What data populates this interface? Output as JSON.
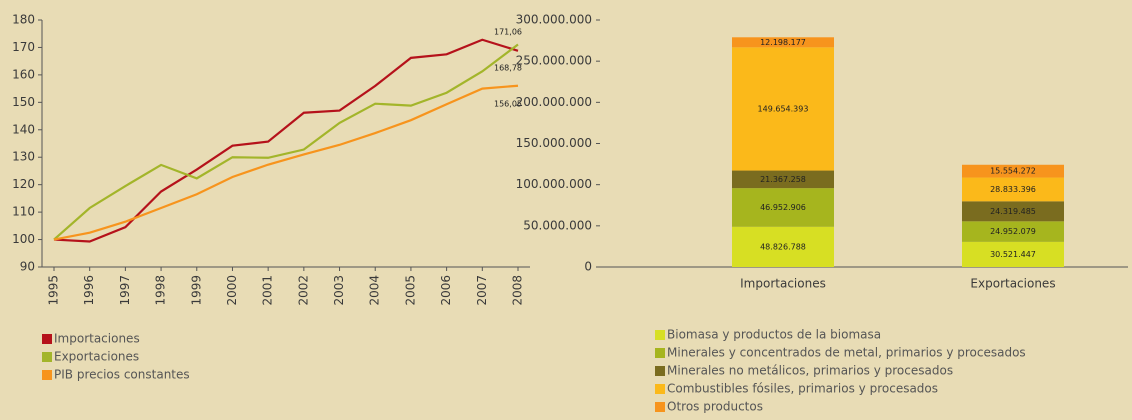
{
  "chart_data": [
    {
      "type": "line",
      "x": [
        1995,
        1996,
        1997,
        1998,
        1999,
        2000,
        2001,
        2002,
        2003,
        2004,
        2005,
        2006,
        2007,
        2008
      ],
      "xticks": [
        1995,
        1996,
        1997,
        1998,
        1999,
        2000,
        2001,
        2002,
        2003,
        2004,
        2005,
        2006,
        2007,
        2008
      ],
      "ylim": [
        90,
        180
      ],
      "yticks": [
        90,
        100,
        110,
        120,
        130,
        140,
        150,
        160,
        170,
        180
      ],
      "series": [
        {
          "name": "Importaciones",
          "color": "#b5121b",
          "values": [
            100,
            99.3,
            104.5,
            117.5,
            125.5,
            134.2,
            135.7,
            146.2,
            147,
            156,
            166.2,
            167.5,
            172.8,
            168.78
          ],
          "value_labels": [
            null,
            null,
            null,
            null,
            null,
            null,
            null,
            null,
            null,
            null,
            null,
            null,
            null,
            "168,78"
          ]
        },
        {
          "name": "Exportaciones",
          "color": "#a3b52a",
          "values": [
            100,
            111.5,
            119.5,
            127.2,
            122.3,
            130,
            129.8,
            132.8,
            142.5,
            149.5,
            148.8,
            153.5,
            161.3,
            171.06
          ],
          "value_labels": [
            null,
            null,
            null,
            null,
            null,
            null,
            null,
            null,
            null,
            null,
            null,
            null,
            null,
            "171,06"
          ]
        },
        {
          "name": "PIB precios constantes",
          "color": "#f7941d",
          "values": [
            100,
            102.5,
            106.5,
            111.5,
            116.5,
            122.8,
            127.3,
            131,
            134.5,
            138.8,
            143.5,
            149.3,
            155,
            156.05
          ],
          "value_labels": [
            null,
            null,
            null,
            null,
            null,
            null,
            null,
            null,
            null,
            null,
            null,
            null,
            null,
            "156,05"
          ]
        }
      ]
    },
    {
      "type": "stacked_bar",
      "categories": [
        "Importaciones",
        "Exportaciones"
      ],
      "ylim": [
        0,
        300000000
      ],
      "yticks": [
        {
          "value": 0,
          "label": "0"
        },
        {
          "value": 50000000,
          "label": "50.000.000"
        },
        {
          "value": 100000000,
          "label": "100.000.000"
        },
        {
          "value": 150000000,
          "label": "150.000.000"
        },
        {
          "value": 200000000,
          "label": "200.000.000"
        },
        {
          "value": 250000000,
          "label": "250.000.000"
        },
        {
          "value": 300000000,
          "label": "300.000.000"
        }
      ],
      "series": [
        {
          "name": "Biomasa y productos de la biomasa",
          "color": "#d7df23",
          "values": [
            48826788,
            30521447
          ],
          "value_labels": [
            "48.826.788",
            "30.521.447"
          ]
        },
        {
          "name": "Minerales y concentrados de metal, primarios y procesados",
          "color": "#a6b51e",
          "values": [
            46952906,
            24952079
          ],
          "value_labels": [
            "46.952.906",
            "24.952.079"
          ]
        },
        {
          "name": "Minerales no metálicos, primarios y procesados",
          "color": "#7a6c1f",
          "values": [
            21367258,
            24319485
          ],
          "value_labels": [
            "21.367.258",
            "24.319.485"
          ]
        },
        {
          "name": "Combustibles fósiles, primarios y procesados",
          "color": "#fbb91a",
          "values": [
            149654393,
            28833396
          ],
          "value_labels": [
            "149.654.393",
            "28.833.396"
          ]
        },
        {
          "name": "Otros productos",
          "color": "#f7941d",
          "values": [
            12198177,
            15554272
          ],
          "value_labels": [
            "12.198.177",
            "15.554.272"
          ]
        }
      ]
    }
  ]
}
